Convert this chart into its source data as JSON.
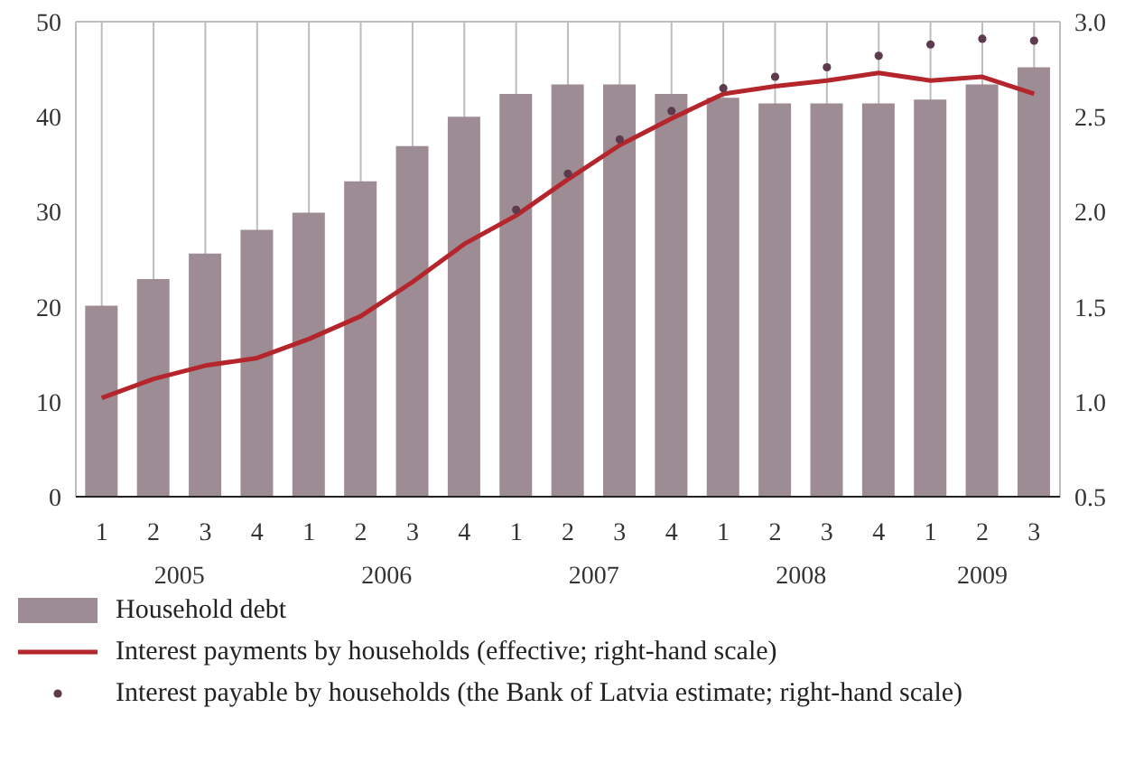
{
  "chart_data": {
    "type": "bar",
    "categories": [
      "1",
      "2",
      "3",
      "4",
      "1",
      "2",
      "3",
      "4",
      "1",
      "2",
      "3",
      "4",
      "1",
      "2",
      "3",
      "4",
      "1",
      "2",
      "3"
    ],
    "annotations": [
      "2005",
      "2006",
      "2007",
      "2008",
      "2009"
    ],
    "series": [
      {
        "name": "Household debt",
        "color": "#9e8c94",
        "values": [
          20.1,
          22.9,
          25.6,
          28.1,
          29.9,
          33.2,
          36.9,
          40.0,
          42.4,
          43.4,
          43.4,
          42.4,
          42.0,
          41.4,
          41.4,
          41.4,
          41.8,
          43.4,
          45.2
        ]
      },
      {
        "name": "Interest payments by households (effective; right-hand scale)",
        "type": "line",
        "axis": "y2",
        "color": "#b5252c",
        "marker": "none",
        "values": [
          1.02,
          1.12,
          1.19,
          1.23,
          1.33,
          1.45,
          1.63,
          1.83,
          1.98,
          2.17,
          2.35,
          2.49,
          2.62,
          2.66,
          2.69,
          2.73,
          2.69,
          2.71,
          2.62
        ]
      },
      {
        "name": "Interest payable by households (the Bank of Latvia estimate; right-hand scale)",
        "type": "scatter",
        "axis": "y2",
        "color": "#5e3a4f",
        "marker": "circle",
        "values": [
          null,
          null,
          null,
          null,
          null,
          null,
          null,
          null,
          2.01,
          2.2,
          2.38,
          2.53,
          2.65,
          2.71,
          2.76,
          2.82,
          2.88,
          2.91,
          2.9
        ]
      }
    ],
    "ylim": [
      0,
      50
    ],
    "yticks": [
      0,
      10,
      20,
      30,
      40,
      50
    ],
    "y2lim": [
      0.5,
      3.0
    ],
    "y2ticks": [
      {
        "value": 0.5,
        "label": "0.5"
      },
      {
        "value": 1.0,
        "label": "1.0"
      },
      {
        "value": 1.5,
        "label": "1.5"
      },
      {
        "value": 2.0,
        "label": "2.0"
      },
      {
        "value": 2.5,
        "label": "2.5"
      },
      {
        "value": 3.0,
        "label": "3.0"
      }
    ],
    "grid": true,
    "legend": "bottom"
  }
}
